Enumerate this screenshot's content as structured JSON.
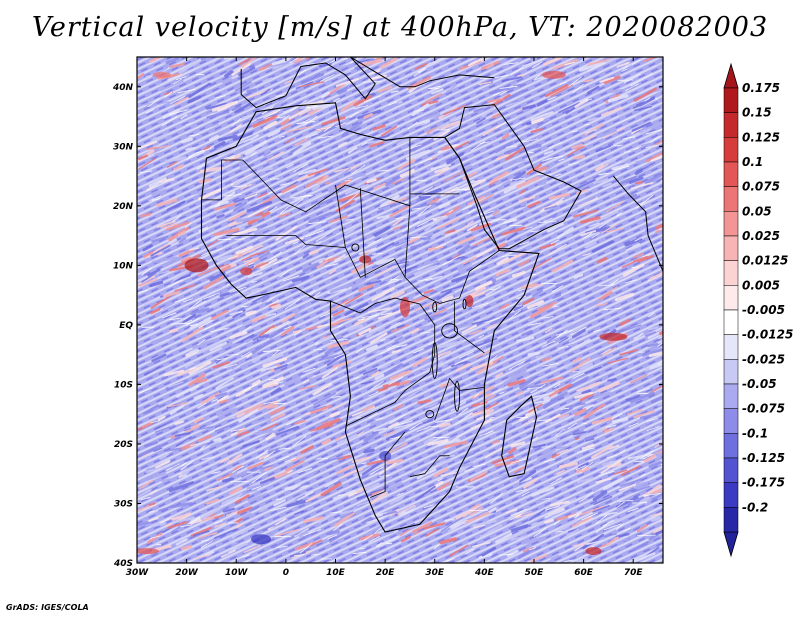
{
  "title": "Vertical velocity [m/s] at 400hPa, VT: 2020082003",
  "credit": "GrADS: IGES/COLA",
  "map": {
    "lon_range": [
      -30,
      76
    ],
    "lat_range": [
      -40,
      45
    ],
    "lon_ticks": [
      {
        "value": -30,
        "label": "30W"
      },
      {
        "value": -20,
        "label": "20W"
      },
      {
        "value": -10,
        "label": "10W"
      },
      {
        "value": 0,
        "label": "0"
      },
      {
        "value": 10,
        "label": "10E"
      },
      {
        "value": 20,
        "label": "20E"
      },
      {
        "value": 30,
        "label": "30E"
      },
      {
        "value": 40,
        "label": "40E"
      },
      {
        "value": 50,
        "label": "50E"
      },
      {
        "value": 60,
        "label": "60E"
      },
      {
        "value": 70,
        "label": "70E"
      }
    ],
    "lat_ticks": [
      {
        "value": 40,
        "label": "40N"
      },
      {
        "value": 30,
        "label": "30N"
      },
      {
        "value": 20,
        "label": "20N"
      },
      {
        "value": 10,
        "label": "10N"
      },
      {
        "value": 0,
        "label": "EQ"
      },
      {
        "value": -10,
        "label": "10S"
      },
      {
        "value": -20,
        "label": "20S"
      },
      {
        "value": -30,
        "label": "30S"
      },
      {
        "value": -40,
        "label": "40S"
      }
    ],
    "variable": "vertical velocity",
    "units": "m/s",
    "level": "400hPa",
    "valid_time": "2020082003"
  },
  "colorbar": {
    "levels": [
      {
        "label": "0.175",
        "color": "#b0191c"
      },
      {
        "label": "0.15",
        "color": "#c42a2c"
      },
      {
        "label": "0.125",
        "color": "#d63c3c"
      },
      {
        "label": "0.1",
        "color": "#e35757"
      },
      {
        "label": "0.075",
        "color": "#ec7575"
      },
      {
        "label": "0.05",
        "color": "#f39595"
      },
      {
        "label": "0.025",
        "color": "#f8b4b4"
      },
      {
        "label": "0.0125",
        "color": "#fcd3d3"
      },
      {
        "label": "0.005",
        "color": "#fdeaea"
      },
      {
        "label": "-0.005",
        "color": "#ffffff"
      },
      {
        "label": "-0.0125",
        "color": "#e6e6fb"
      },
      {
        "label": "-0.025",
        "color": "#c9c9f6"
      },
      {
        "label": "-0.05",
        "color": "#aaaaf0"
      },
      {
        "label": "-0.075",
        "color": "#8d8de9"
      },
      {
        "label": "-0.1",
        "color": "#6f6fdf"
      },
      {
        "label": "-0.125",
        "color": "#5454d3"
      },
      {
        "label": "-0.175",
        "color": "#3a3ac2"
      },
      {
        "label": "-0.2",
        "color": "#2727a8"
      }
    ],
    "top_color": "#a4161b",
    "bottom_color": "#22229a"
  }
}
